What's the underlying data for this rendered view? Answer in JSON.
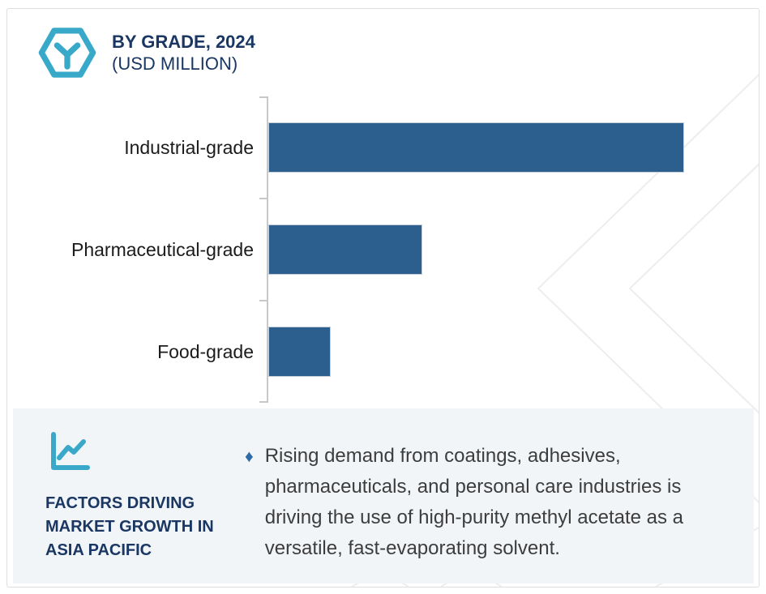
{
  "header": {
    "title_line1": "BY GRADE, 2024",
    "title_line2": "(USD MILLION)",
    "icon": "hexagon-box-icon",
    "accent_color": "#38a9c9",
    "title_color": "#1a3763"
  },
  "chart_data": {
    "type": "bar",
    "orientation": "horizontal",
    "title": "BY GRADE, 2024 (USD MILLION)",
    "unit": "USD Million",
    "categories": [
      "Industrial-grade",
      "Pharmaceutical-grade",
      "Food-grade"
    ],
    "values": [
      100,
      37,
      15
    ],
    "value_scale_note": "axis has no numeric tick labels; values are relative bar lengths with Industrial-grade = 100",
    "xlim": [
      0,
      118
    ],
    "grid": false,
    "value_labels": false,
    "bar_color": "#2d5f8e",
    "axis_color": "#c6c8ca"
  },
  "factors": {
    "icon": "line-chart-icon",
    "heading": "FACTORS DRIVING MARKET GROWTH IN ASIA PACIFIC",
    "bullet_marker": "♦",
    "bullet_text": "Rising demand from coatings, adhesives, pharmaceuticals, and personal care industries is driving the use of high-purity methyl acetate as a versatile, fast-evaporating solvent.",
    "panel_bg": "#f2f5f8"
  },
  "colors": {
    "bar_blue": "#2d5f8e",
    "teal_accent": "#38a9c9",
    "navy_text": "#1a3763",
    "panel_bg": "#f2f5f8",
    "watermark_gray": "#ededed"
  }
}
